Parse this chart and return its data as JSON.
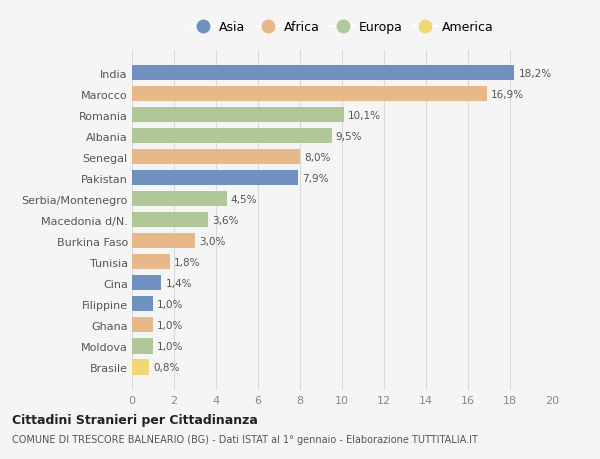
{
  "countries": [
    "India",
    "Marocco",
    "Romania",
    "Albania",
    "Senegal",
    "Pakistan",
    "Serbia/Montenegro",
    "Macedonia d/N.",
    "Burkina Faso",
    "Tunisia",
    "Cina",
    "Filippine",
    "Ghana",
    "Moldova",
    "Brasile"
  ],
  "values": [
    18.2,
    16.9,
    10.1,
    9.5,
    8.0,
    7.9,
    4.5,
    3.6,
    3.0,
    1.8,
    1.4,
    1.0,
    1.0,
    1.0,
    0.8
  ],
  "labels": [
    "18,2%",
    "16,9%",
    "10,1%",
    "9,5%",
    "8,0%",
    "7,9%",
    "4,5%",
    "3,6%",
    "3,0%",
    "1,8%",
    "1,4%",
    "1,0%",
    "1,0%",
    "1,0%",
    "0,8%"
  ],
  "continents": [
    "Asia",
    "Africa",
    "Europa",
    "Europa",
    "Africa",
    "Asia",
    "Europa",
    "Europa",
    "Africa",
    "Africa",
    "Asia",
    "Asia",
    "Africa",
    "Europa",
    "America"
  ],
  "colors": {
    "Asia": "#7090c0",
    "Africa": "#e8b888",
    "Europa": "#b0c898",
    "America": "#f0d878"
  },
  "legend_order": [
    "Asia",
    "Africa",
    "Europa",
    "America"
  ],
  "title1": "Cittadini Stranieri per Cittadinanza",
  "title2": "COMUNE DI TRESCORE BALNEARIO (BG) - Dati ISTAT al 1° gennaio - Elaborazione TUTTITALIA.IT",
  "xlim": [
    0,
    20
  ],
  "xticks": [
    0,
    2,
    4,
    6,
    8,
    10,
    12,
    14,
    16,
    18,
    20
  ],
  "bg_color": "#f5f5f5",
  "grid_color": "#d8d8d8"
}
